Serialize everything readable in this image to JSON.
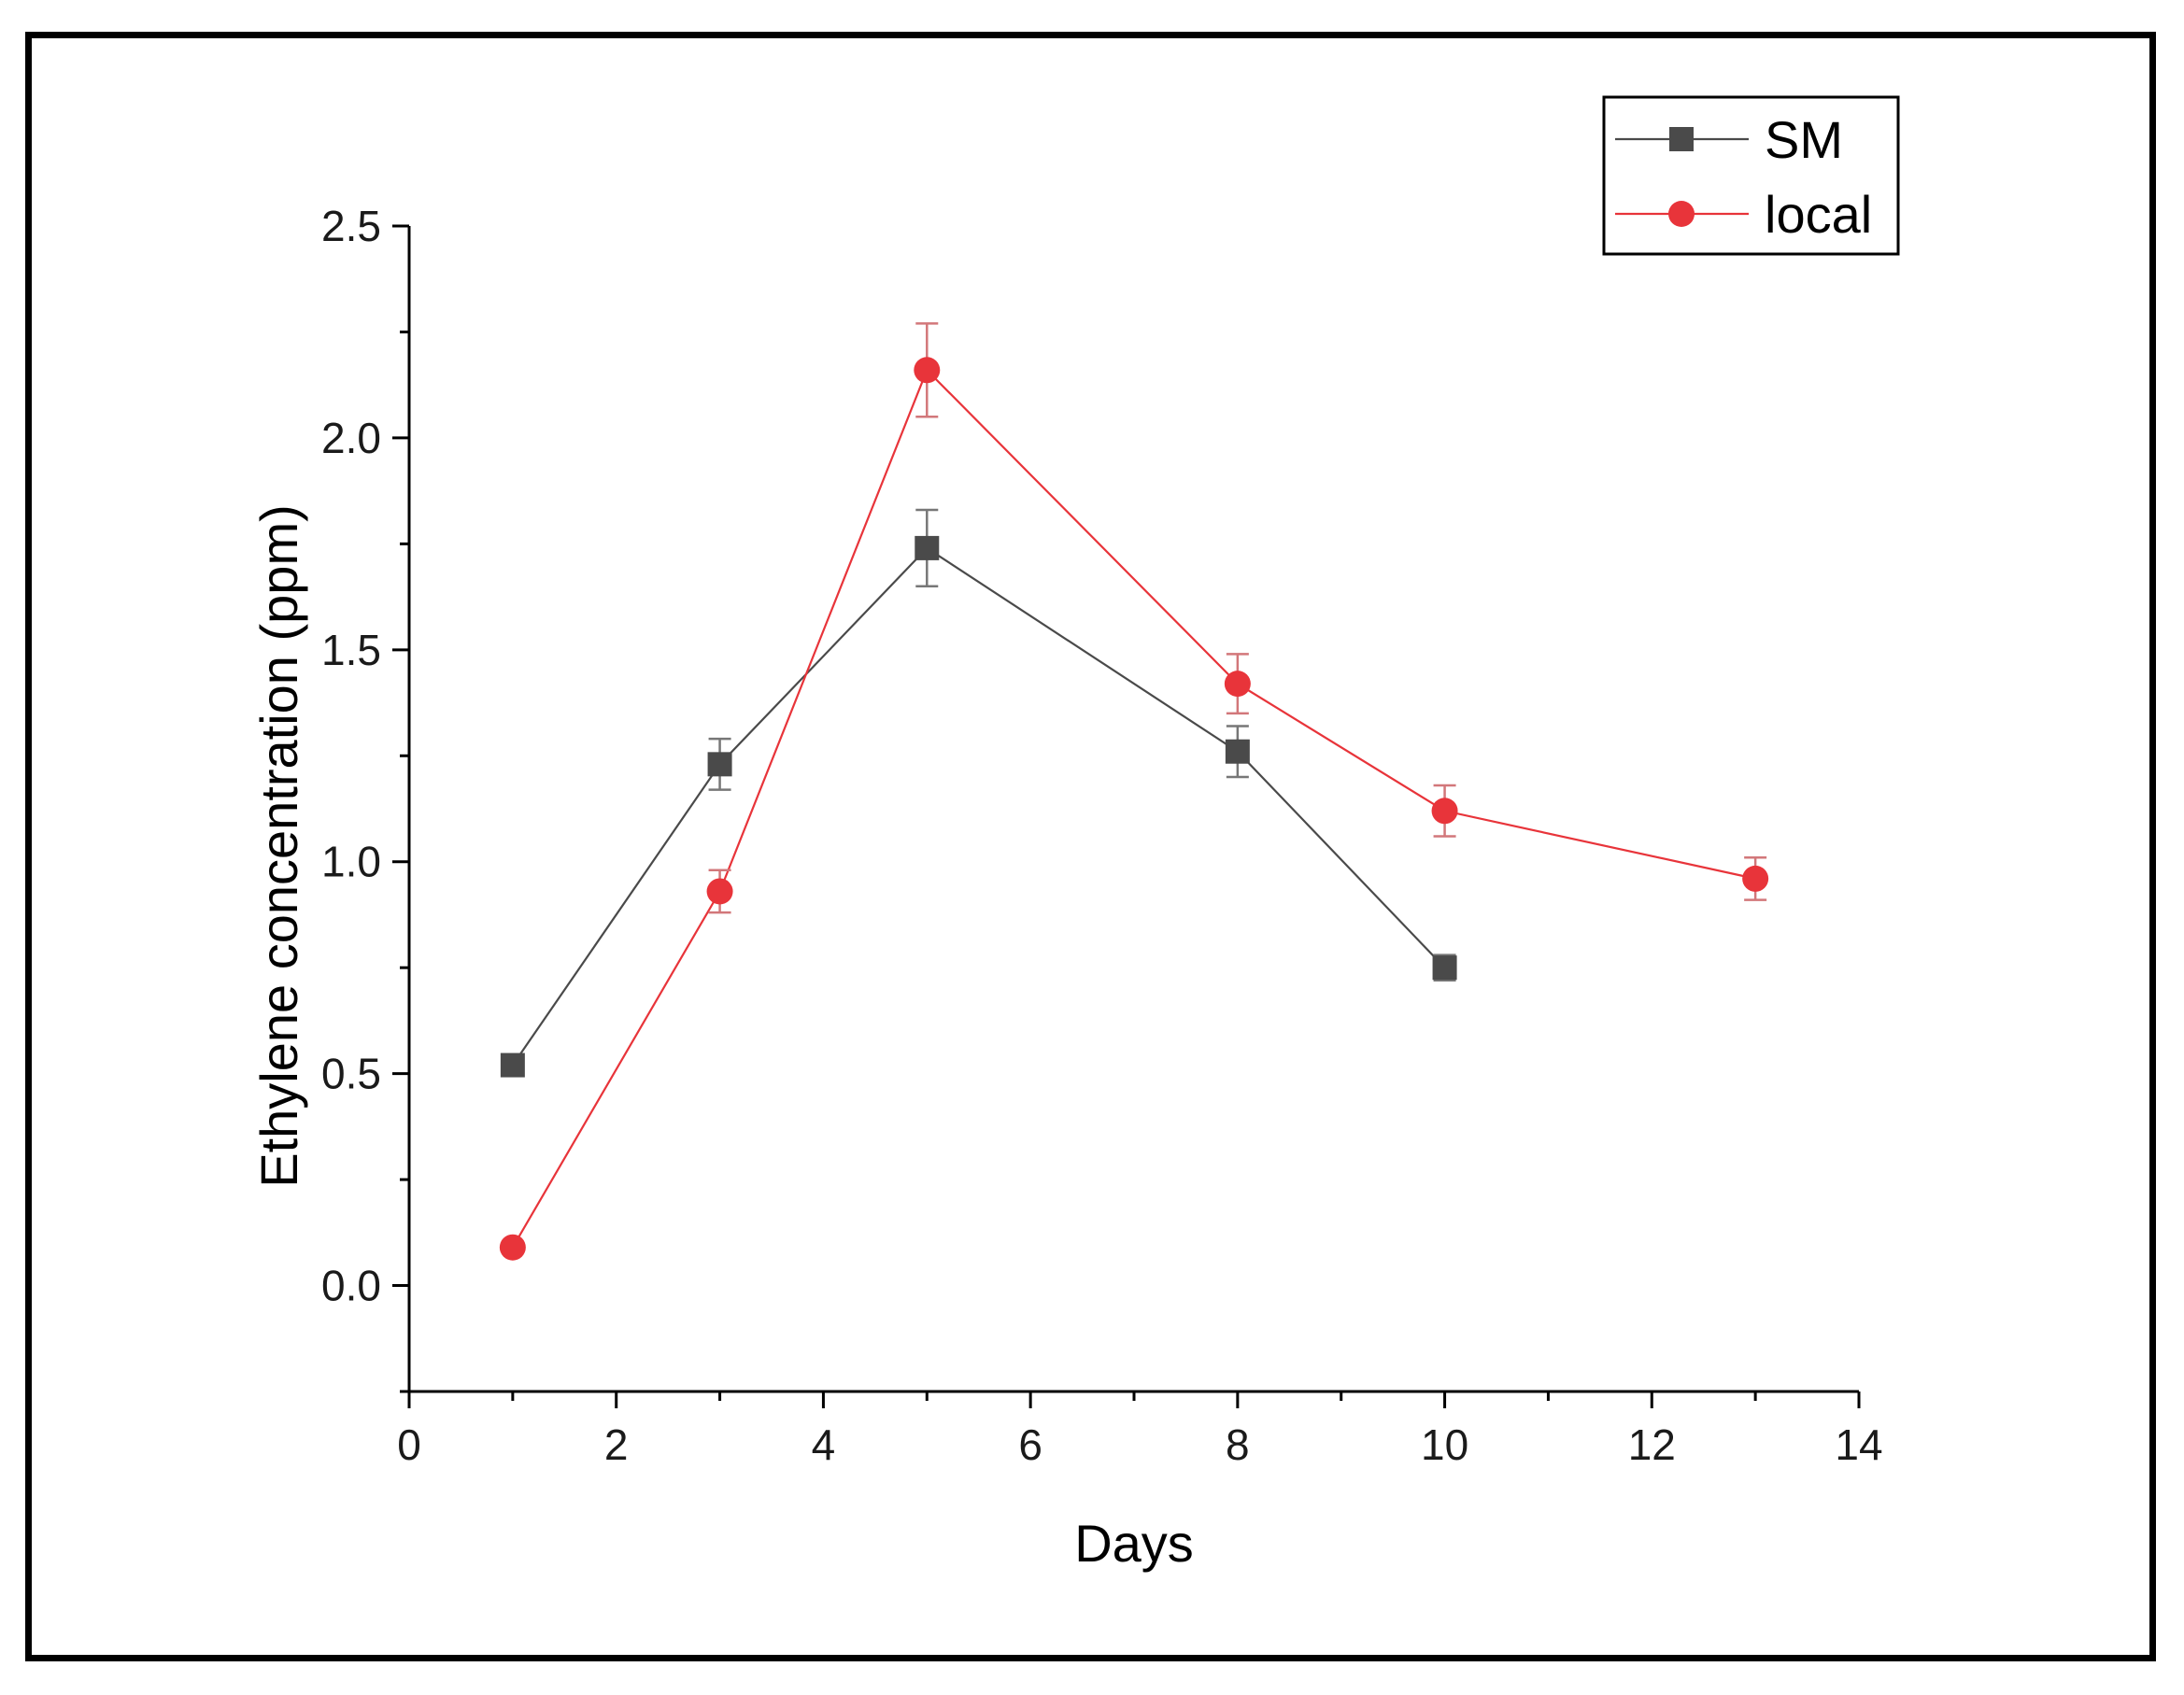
{
  "chart_data": {
    "type": "line",
    "title": "",
    "xlabel": "Days",
    "ylabel": "Ethylene concentration (ppm)",
    "xlim": [
      0,
      14
    ],
    "ylim": [
      -0.25,
      2.5
    ],
    "x_ticks": [
      "0",
      "2",
      "4",
      "6",
      "8",
      "10",
      "12",
      "14"
    ],
    "y_ticks": [
      "0.0",
      "0.5",
      "1.0",
      "1.5",
      "2.0",
      "2.5"
    ],
    "grid": false,
    "legend_position": "top-right",
    "series": [
      {
        "name": "SM",
        "color": "#4a4a4a",
        "marker": "square",
        "x": [
          1,
          3,
          5,
          8,
          10
        ],
        "y": [
          0.52,
          1.23,
          1.74,
          1.26,
          0.75
        ],
        "error": [
          0.02,
          0.06,
          0.09,
          0.06,
          0.03
        ]
      },
      {
        "name": "local",
        "color": "#e8343a",
        "marker": "circle",
        "x": [
          1,
          3,
          5,
          8,
          10,
          13
        ],
        "y": [
          0.09,
          0.93,
          2.16,
          1.42,
          1.12,
          0.96
        ],
        "error": [
          0.01,
          0.05,
          0.11,
          0.07,
          0.06,
          0.05
        ]
      }
    ]
  }
}
